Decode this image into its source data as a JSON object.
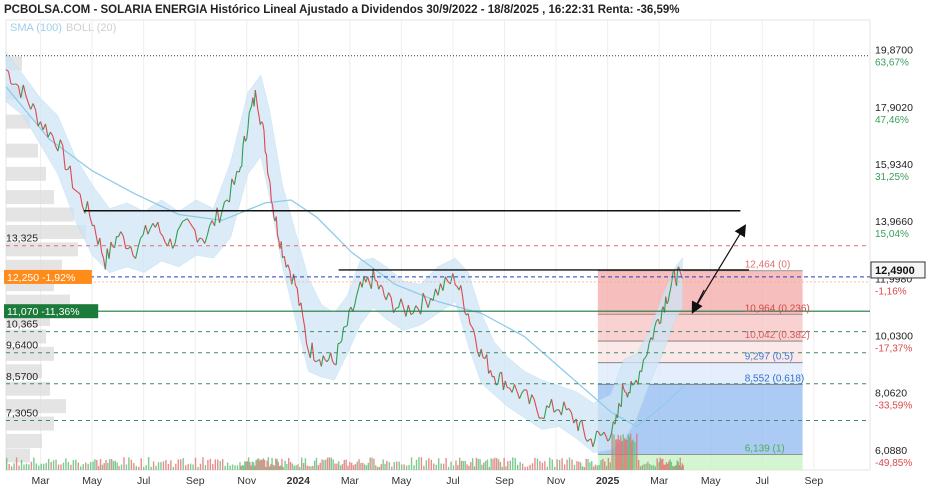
{
  "header": {
    "title": "PCBOLSA.COM - SOLARIA ENERGIA Histórico Lineal Ajustado a Dividendos 30/9/2022 - 18/8/2025 , 16:22:31 Renta: -36,59%",
    "indicator_sma": "SMA (100)",
    "indicator_boll": "BOLL (20)"
  },
  "colors": {
    "price_up": "#2e9e4f",
    "price_down": "#e0474c",
    "sma": "#8fcbe8",
    "boll_band": "#cfe6f6",
    "orange_label": "#ff8c1a",
    "green_label": "#1c7a3a",
    "fib_red": "#f4a8a8",
    "fib_blue": "#8fb9f2",
    "fib_green": "#c9f2c6"
  },
  "chart_data": {
    "type": "line",
    "title": "PCBOLSA.COM - SOLARIA ENERGIA Histórico Lineal Ajustado a Dividendos 30/9/2022 - 18/8/2025 , 16:22:31 Renta: -36,59%",
    "x_tick_labels": [
      "Mar",
      "May",
      "Jul",
      "Sep",
      "Nov",
      "2024",
      "Mar",
      "May",
      "Jul",
      "Sep",
      "Nov",
      "2025",
      "Mar",
      "May",
      "Jul",
      "Sep"
    ],
    "y_ticks": [
      {
        "value": 19.87,
        "label": "19,8700",
        "pct": "63,67%"
      },
      {
        "value": 17.902,
        "label": "17,9020",
        "pct": "47,46%"
      },
      {
        "value": 15.934,
        "label": "15,9340",
        "pct": "31,25%"
      },
      {
        "value": 13.966,
        "label": "13,9660",
        "pct": "15,04%"
      },
      {
        "value": 11.998,
        "label": "11,9980",
        "pct": "-1,16%"
      },
      {
        "value": 10.03,
        "label": "10,0300",
        "pct": "-17,37%"
      },
      {
        "value": 8.062,
        "label": "8,0620",
        "pct": "-33,59%"
      },
      {
        "value": 6.088,
        "label": "6,0880",
        "pct": "-49,85%"
      }
    ],
    "ylim": [
      5.6,
      21.1
    ],
    "last_price": {
      "value": 12.49,
      "label": "12,4900"
    },
    "left_levels": [
      {
        "value": 13.325,
        "label": "13,325",
        "style": "red-dash"
      },
      {
        "value": 12.25,
        "label": "12,250 -1,92%",
        "style": "orange"
      },
      {
        "value": 11.07,
        "label": "11,070 -11,36%",
        "style": "green"
      },
      {
        "value": 10.365,
        "label": "10,365",
        "style": "green-dash"
      },
      {
        "value": 9.64,
        "label": "9,6400",
        "style": "green-dash"
      },
      {
        "value": 8.57,
        "label": "8,5700",
        "style": "green-dash"
      },
      {
        "value": 7.305,
        "label": "7,3050",
        "style": "green-dash"
      }
    ],
    "fibonacci": [
      {
        "value": 12.464,
        "label": "12,464 (0)"
      },
      {
        "value": 10.964,
        "label": "10,964 (0.236)"
      },
      {
        "value": 10.042,
        "label": "10,042 (0.382)"
      },
      {
        "value": 9.297,
        "label": "9,297 (0.5)"
      },
      {
        "value": 8.552,
        "label": "8,552 (0.618)"
      },
      {
        "value": 6.139,
        "label": "6,139 (1)"
      }
    ],
    "top_dotted_level": 19.87,
    "resistance_lines": [
      {
        "x0": 0.09,
        "x1": 0.85,
        "y": 14.53
      },
      {
        "x0": 0.385,
        "x1": 0.86,
        "y": 12.49
      }
    ],
    "price_path": [
      [
        0.0,
        19.4
      ],
      [
        0.02,
        18.6
      ],
      [
        0.04,
        17.6
      ],
      [
        0.06,
        16.9
      ],
      [
        0.08,
        15.3
      ],
      [
        0.1,
        14.2
      ],
      [
        0.115,
        12.8
      ],
      [
        0.13,
        13.7
      ],
      [
        0.15,
        13.2
      ],
      [
        0.17,
        14.1
      ],
      [
        0.19,
        13.4
      ],
      [
        0.21,
        14.0
      ],
      [
        0.23,
        13.6
      ],
      [
        0.25,
        14.6
      ],
      [
        0.27,
        15.8
      ],
      [
        0.28,
        17.6
      ],
      [
        0.29,
        18.6
      ],
      [
        0.3,
        16.8
      ],
      [
        0.31,
        14.5
      ],
      [
        0.32,
        13.2
      ],
      [
        0.335,
        12.0
      ],
      [
        0.35,
        9.8
      ],
      [
        0.365,
        9.5
      ],
      [
        0.38,
        9.3
      ],
      [
        0.395,
        10.6
      ],
      [
        0.41,
        11.8
      ],
      [
        0.425,
        12.2
      ],
      [
        0.44,
        11.5
      ],
      [
        0.46,
        11.1
      ],
      [
        0.48,
        11.3
      ],
      [
        0.5,
        11.8
      ],
      [
        0.52,
        12.2
      ],
      [
        0.535,
        11.0
      ],
      [
        0.55,
        9.6
      ],
      [
        0.565,
        8.9
      ],
      [
        0.58,
        8.6
      ],
      [
        0.6,
        8.1
      ],
      [
        0.62,
        7.6
      ],
      [
        0.64,
        7.8
      ],
      [
        0.66,
        7.3
      ],
      [
        0.675,
        6.6
      ],
      [
        0.69,
        6.8
      ],
      [
        0.705,
        7.0
      ],
      [
        0.715,
        8.5
      ],
      [
        0.725,
        8.3
      ],
      [
        0.74,
        9.6
      ],
      [
        0.755,
        10.8
      ],
      [
        0.765,
        11.6
      ],
      [
        0.775,
        12.3
      ],
      [
        0.783,
        12.2
      ]
    ],
    "sma_path": [
      [
        0.0,
        18.8
      ],
      [
        0.05,
        17.0
      ],
      [
        0.1,
        15.9
      ],
      [
        0.15,
        15.1
      ],
      [
        0.2,
        14.4
      ],
      [
        0.25,
        14.2
      ],
      [
        0.3,
        14.8
      ],
      [
        0.33,
        14.9
      ],
      [
        0.36,
        14.3
      ],
      [
        0.4,
        13.1
      ],
      [
        0.45,
        12.0
      ],
      [
        0.5,
        11.4
      ],
      [
        0.55,
        11.0
      ],
      [
        0.6,
        10.2
      ],
      [
        0.65,
        8.9
      ],
      [
        0.7,
        7.6
      ],
      [
        0.73,
        7.1
      ],
      [
        0.76,
        7.8
      ],
      [
        0.785,
        8.5
      ]
    ],
    "boll_upper": [
      [
        0.0,
        20.0
      ],
      [
        0.02,
        19.2
      ],
      [
        0.04,
        18.4
      ],
      [
        0.06,
        17.8
      ],
      [
        0.08,
        16.4
      ],
      [
        0.1,
        15.4
      ],
      [
        0.12,
        14.6
      ],
      [
        0.14,
        14.8
      ],
      [
        0.16,
        14.5
      ],
      [
        0.18,
        14.9
      ],
      [
        0.2,
        14.5
      ],
      [
        0.22,
        14.9
      ],
      [
        0.24,
        14.6
      ],
      [
        0.26,
        16.2
      ],
      [
        0.28,
        18.6
      ],
      [
        0.295,
        19.2
      ],
      [
        0.305,
        18.0
      ],
      [
        0.32,
        15.4
      ],
      [
        0.335,
        13.8
      ],
      [
        0.35,
        12.2
      ],
      [
        0.365,
        11.3
      ],
      [
        0.38,
        11.0
      ],
      [
        0.395,
        11.6
      ],
      [
        0.41,
        12.8
      ],
      [
        0.425,
        12.9
      ],
      [
        0.44,
        12.6
      ],
      [
        0.46,
        12.1
      ],
      [
        0.48,
        12.0
      ],
      [
        0.5,
        12.6
      ],
      [
        0.52,
        12.9
      ],
      [
        0.535,
        12.4
      ],
      [
        0.55,
        11.0
      ],
      [
        0.565,
        10.0
      ],
      [
        0.58,
        9.5
      ],
      [
        0.6,
        9.0
      ],
      [
        0.62,
        8.7
      ],
      [
        0.64,
        8.5
      ],
      [
        0.66,
        8.3
      ],
      [
        0.68,
        7.9
      ],
      [
        0.7,
        8.2
      ],
      [
        0.715,
        9.4
      ],
      [
        0.73,
        9.6
      ],
      [
        0.745,
        10.4
      ],
      [
        0.76,
        11.6
      ],
      [
        0.775,
        12.6
      ],
      [
        0.783,
        12.9
      ]
    ],
    "boll_lower": [
      [
        0.0,
        18.3
      ],
      [
        0.02,
        17.8
      ],
      [
        0.04,
        16.8
      ],
      [
        0.06,
        15.8
      ],
      [
        0.08,
        14.2
      ],
      [
        0.1,
        13.0
      ],
      [
        0.12,
        12.4
      ],
      [
        0.14,
        12.6
      ],
      [
        0.16,
        12.4
      ],
      [
        0.18,
        12.8
      ],
      [
        0.2,
        12.6
      ],
      [
        0.22,
        13.0
      ],
      [
        0.24,
        12.9
      ],
      [
        0.26,
        13.6
      ],
      [
        0.28,
        15.8
      ],
      [
        0.295,
        16.4
      ],
      [
        0.305,
        15.0
      ],
      [
        0.32,
        12.6
      ],
      [
        0.335,
        10.8
      ],
      [
        0.35,
        9.0
      ],
      [
        0.365,
        8.8
      ],
      [
        0.38,
        8.7
      ],
      [
        0.395,
        9.6
      ],
      [
        0.41,
        10.6
      ],
      [
        0.425,
        11.2
      ],
      [
        0.44,
        10.8
      ],
      [
        0.46,
        10.4
      ],
      [
        0.48,
        10.6
      ],
      [
        0.5,
        11.0
      ],
      [
        0.52,
        11.4
      ],
      [
        0.535,
        9.9
      ],
      [
        0.55,
        8.6
      ],
      [
        0.565,
        8.2
      ],
      [
        0.58,
        7.8
      ],
      [
        0.6,
        7.4
      ],
      [
        0.62,
        7.0
      ],
      [
        0.64,
        7.1
      ],
      [
        0.66,
        6.7
      ],
      [
        0.68,
        6.2
      ],
      [
        0.7,
        6.3
      ],
      [
        0.715,
        6.6
      ],
      [
        0.73,
        7.4
      ],
      [
        0.745,
        8.6
      ],
      [
        0.76,
        9.6
      ],
      [
        0.775,
        10.8
      ],
      [
        0.783,
        11.2
      ]
    ],
    "volume_profile": [
      {
        "price": 19.6,
        "size": 0.2
      },
      {
        "price": 18.6,
        "size": 0.25
      },
      {
        "price": 17.6,
        "size": 0.3
      },
      {
        "price": 16.6,
        "size": 0.4
      },
      {
        "price": 15.8,
        "size": 0.5
      },
      {
        "price": 15.0,
        "size": 0.6
      },
      {
        "price": 14.4,
        "size": 0.85
      },
      {
        "price": 13.8,
        "size": 1.0
      },
      {
        "price": 13.2,
        "size": 0.9
      },
      {
        "price": 12.6,
        "size": 0.7
      },
      {
        "price": 12.0,
        "size": 0.6
      },
      {
        "price": 11.4,
        "size": 0.8
      },
      {
        "price": 10.8,
        "size": 0.55
      },
      {
        "price": 10.2,
        "size": 0.5
      },
      {
        "price": 9.6,
        "size": 0.6
      },
      {
        "price": 9.0,
        "size": 0.45
      },
      {
        "price": 8.4,
        "size": 0.55
      },
      {
        "price": 7.8,
        "size": 0.75
      },
      {
        "price": 7.2,
        "size": 0.6
      },
      {
        "price": 6.6,
        "size": 0.45
      },
      {
        "price": 6.1,
        "size": 0.3
      }
    ]
  }
}
